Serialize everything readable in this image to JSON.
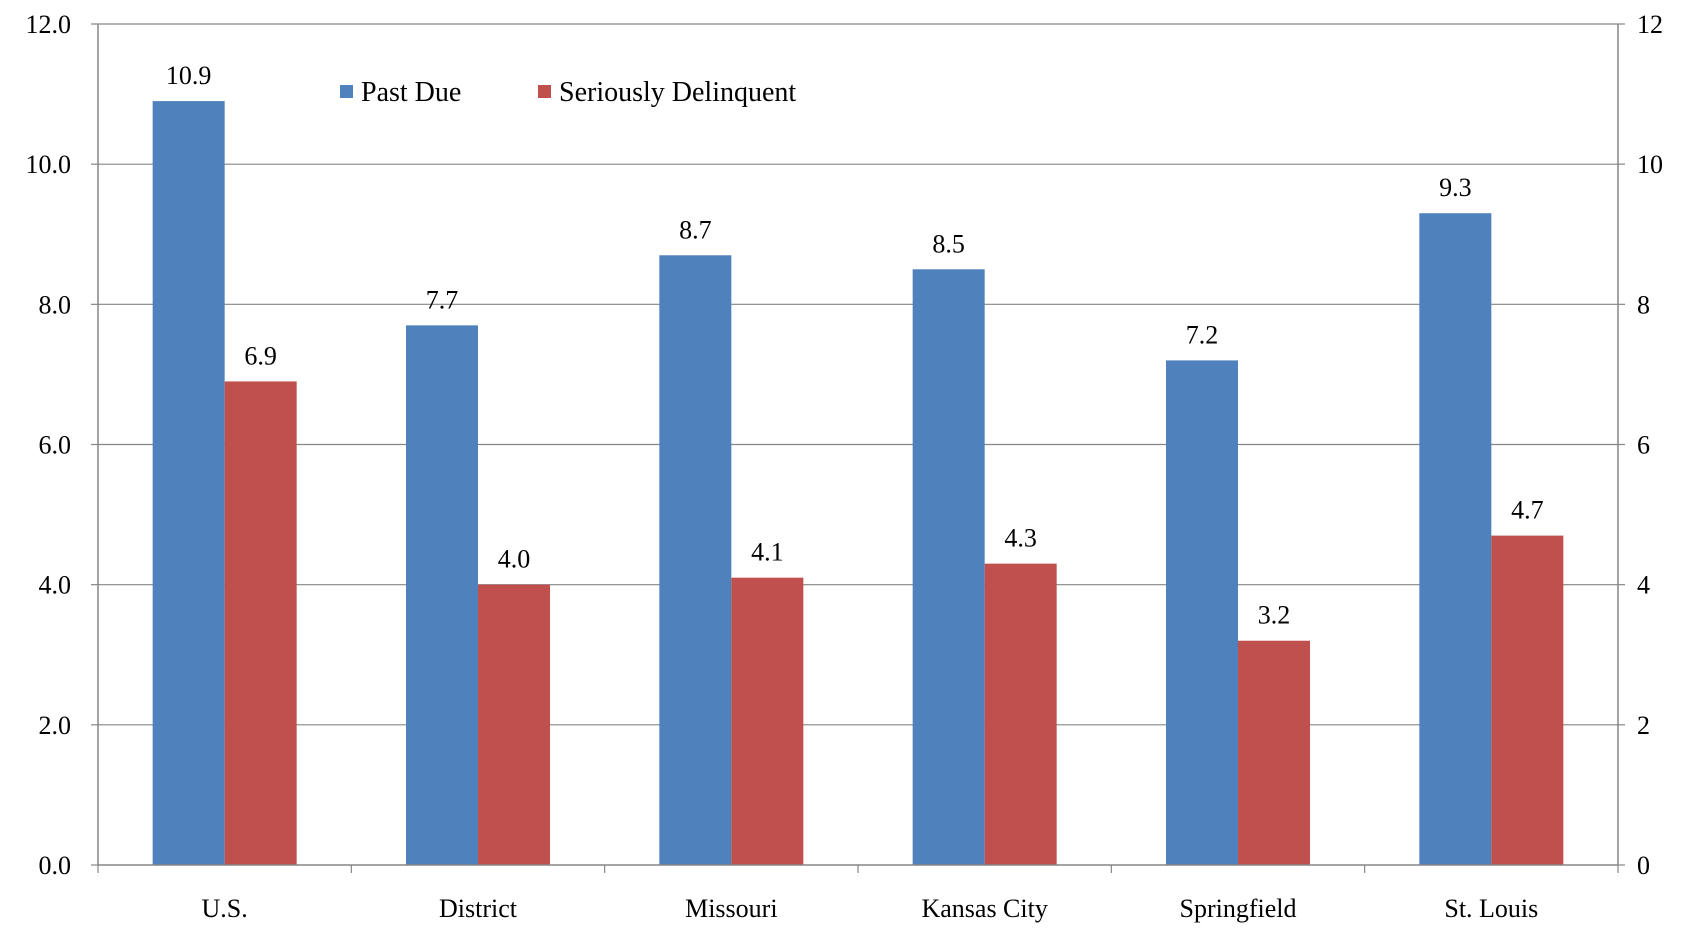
{
  "chart_data": {
    "type": "bar",
    "categories": [
      "U.S.",
      "District",
      "Missouri",
      "Kansas City",
      "Springfield",
      "St. Louis"
    ],
    "series": [
      {
        "name": "Past Due",
        "color": "#4F81BD",
        "values": [
          10.9,
          7.7,
          8.7,
          8.5,
          7.2,
          9.3
        ],
        "labels": [
          "10.9",
          "7.7",
          "8.7",
          "8.5",
          "7.2",
          "9.3"
        ]
      },
      {
        "name": "Seriously Delinquent",
        "color": "#C0504D",
        "values": [
          6.9,
          4.0,
          4.1,
          4.3,
          3.2,
          4.7
        ],
        "labels": [
          "6.9",
          "4.0",
          "4.1",
          "4.3",
          "3.2",
          "4.7"
        ]
      }
    ],
    "ylim": [
      0,
      12
    ],
    "left_ticks": [
      "0.0",
      "2.0",
      "4.0",
      "6.0",
      "8.0",
      "10.0",
      "12.0"
    ],
    "right_ticks": [
      "0",
      "2",
      "4",
      "6",
      "8",
      "10",
      "12"
    ],
    "grid": true,
    "legend_position": "top-left"
  }
}
